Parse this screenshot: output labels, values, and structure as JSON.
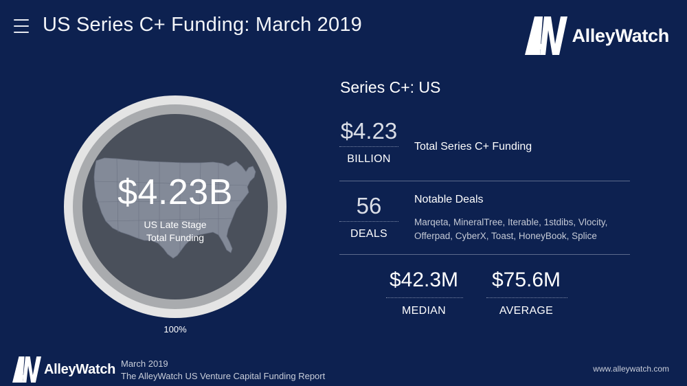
{
  "header": {
    "title": "US Series C+ Funding: March 2019",
    "brand": "AlleyWatch",
    "menu_icon": "hamburger-menu-icon"
  },
  "donut": {
    "value": "$4.23B",
    "sub_line1": "US Late Stage",
    "sub_line2": "Total Funding",
    "percent_label": "100%",
    "percent_value": 100,
    "ring_outer_color": "#e4e4e4",
    "ring_inner_color": "#a9abae",
    "center_color": "#4a505b",
    "map_color": "#838a98"
  },
  "stats": {
    "title": "Series C+: US",
    "total": {
      "number": "$4.23",
      "unit": "BILLION",
      "label": "Total Series C+ Funding"
    },
    "deals": {
      "number": "56",
      "unit": "DEALS",
      "label": "Notable Deals",
      "list_line1": "Marqeta, MineralTree, Iterable, 1stdibs, Vlocity,",
      "list_line2": "Offerpad, CyberX, Toast, HoneyBook, Splice"
    },
    "median": {
      "number": "$42.3M",
      "unit": "MEDIAN"
    },
    "average": {
      "number": "$75.6M",
      "unit": "AVERAGE"
    }
  },
  "footer": {
    "brand": "AlleyWatch",
    "date": "March 2019",
    "report": "The AlleyWatch US Venture Capital Funding Report",
    "url": "www.alleywatch.com"
  },
  "colors": {
    "background": "#0d2150",
    "divider": "#5d6b8c"
  }
}
